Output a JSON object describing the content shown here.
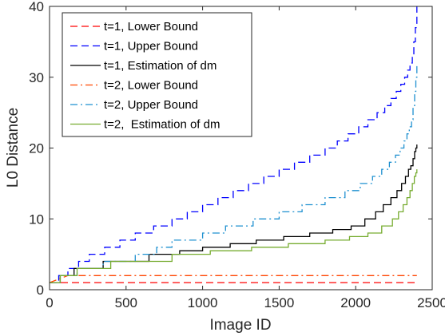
{
  "chart_data": {
    "type": "line",
    "xlabel": "Image ID",
    "ylabel": "L0 Distance",
    "xlim": [
      0,
      2500
    ],
    "ylim": [
      0,
      40
    ],
    "xticks": [
      0,
      500,
      1000,
      1500,
      2000,
      2500
    ],
    "yticks": [
      0,
      10,
      20,
      30,
      40
    ],
    "legend_position": "top-left",
    "grid": false,
    "series": [
      {
        "name": "t=1, Lower Bound",
        "color": "#ff0000",
        "dash": "dashed",
        "step": false,
        "x": [
          0,
          2400
        ],
        "y": [
          1,
          1
        ]
      },
      {
        "name": "t=1, Upper Bound",
        "color": "#0000ff",
        "dash": "dashed",
        "step": true,
        "x": [
          0,
          60,
          120,
          190,
          260,
          360,
          460,
          560,
          680,
          800,
          900,
          1000,
          1100,
          1200,
          1300,
          1400,
          1500,
          1600,
          1700,
          1800,
          1880,
          1950,
          2020,
          2080,
          2140,
          2190,
          2230,
          2265,
          2295,
          2320,
          2340,
          2355,
          2370,
          2380,
          2390,
          2400
        ],
        "y": [
          1,
          2,
          3,
          4,
          5,
          6,
          7,
          8,
          9,
          10,
          11,
          12,
          13,
          14,
          15,
          16,
          17,
          18,
          19,
          20,
          21,
          22,
          23,
          24,
          25,
          26,
          27,
          28,
          29,
          30,
          31,
          32,
          33,
          35,
          37,
          40
        ]
      },
      {
        "name": "t=1, Estimation of dm",
        "color": "#000000",
        "dash": "solid",
        "step": true,
        "x": [
          0,
          70,
          160,
          350,
          650,
          850,
          1000,
          1180,
          1350,
          1530,
          1700,
          1850,
          1970,
          2060,
          2130,
          2180,
          2230,
          2270,
          2300,
          2325,
          2345,
          2360,
          2375,
          2385,
          2393,
          2400
        ],
        "y": [
          1,
          2,
          3,
          4,
          5,
          5.5,
          6,
          6.5,
          7,
          7.5,
          8,
          8.5,
          9,
          10,
          11,
          12,
          13,
          14,
          15,
          16,
          17,
          17.5,
          18.5,
          19.5,
          20,
          20.5
        ]
      },
      {
        "name": "t=2, Lower Bound",
        "color": "#ff4500",
        "dash": "dash-dot",
        "step": false,
        "x": [
          0,
          120,
          2400
        ],
        "y": [
          1,
          2,
          2
        ]
      },
      {
        "name": "t=2, Upper Bound",
        "color": "#1e90d0",
        "dash": "dash-dot",
        "step": true,
        "x": [
          0,
          70,
          180,
          350,
          560,
          700,
          800,
          1000,
          1150,
          1330,
          1500,
          1650,
          1800,
          1930,
          2030,
          2110,
          2170,
          2220,
          2260,
          2290,
          2315,
          2335,
          2350,
          2365,
          2375,
          2385,
          2393,
          2400
        ],
        "y": [
          1,
          2,
          3,
          4,
          5,
          6,
          7,
          8,
          9,
          10,
          11,
          12,
          13,
          14,
          15,
          16,
          17,
          18,
          19,
          20,
          21,
          22,
          23,
          24,
          26,
          28,
          30,
          32
        ]
      },
      {
        "name": "t=2,  Estimation of dm",
        "color": "#77ac30",
        "dash": "solid",
        "step": true,
        "x": [
          0,
          70,
          180,
          400,
          800,
          1050,
          1320,
          1560,
          1800,
          1960,
          2080,
          2170,
          2240,
          2280,
          2310,
          2335,
          2355,
          2370,
          2383,
          2393,
          2400
        ],
        "y": [
          1,
          2,
          3,
          4,
          5,
          5.5,
          6,
          6.5,
          7,
          7.5,
          8,
          9,
          10,
          11,
          12,
          13,
          14,
          15,
          16,
          16.5,
          17
        ]
      }
    ]
  }
}
